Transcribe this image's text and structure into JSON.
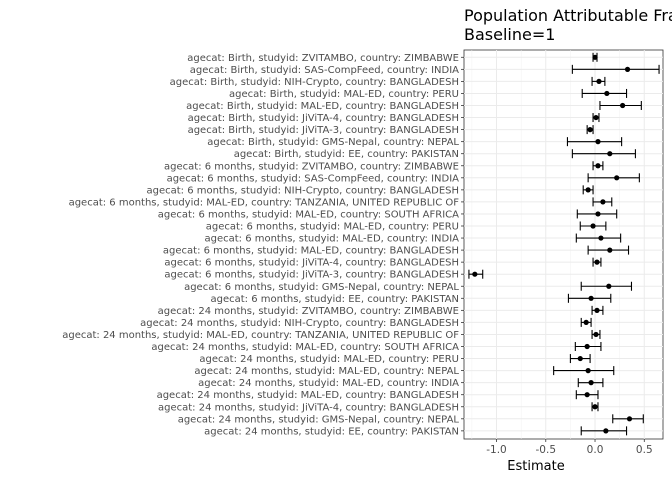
{
  "chart_data": {
    "type": "scatter",
    "title_lines": [
      "Population Attributable Fra",
      "Baseline=1"
    ],
    "xlabel": "Estimate",
    "ylabel": "",
    "xlim": [
      -1.33,
      0.69
    ],
    "xticks": [
      -1.0,
      -0.5,
      0.0,
      0.5
    ],
    "xtick_labels": [
      "-1.0",
      "-0.5",
      "0.0",
      "0.5"
    ],
    "grid": true,
    "point_color": "#000000",
    "points": [
      {
        "label": "agecat: Birth, studyid: ZVITAMBO, country: ZIMBABWE",
        "estimate": 0.0,
        "lower": -0.02,
        "upper": 0.02
      },
      {
        "label": "agecat: Birth, studyid: SAS-CompFeed, country: INDIA",
        "estimate": 0.33,
        "lower": -0.23,
        "upper": 0.65
      },
      {
        "label": "agecat: Birth, studyid: NIH-Crypto, country: BANGLADESH",
        "estimate": 0.04,
        "lower": -0.03,
        "upper": 0.1
      },
      {
        "label": "agecat: Birth, studyid: MAL-ED, country: PERU",
        "estimate": 0.12,
        "lower": -0.13,
        "upper": 0.32
      },
      {
        "label": "agecat: Birth, studyid: MAL-ED, country: BANGLADESH",
        "estimate": 0.28,
        "lower": 0.05,
        "upper": 0.47
      },
      {
        "label": "agecat: Birth, studyid: JiViTA-4, country: BANGLADESH",
        "estimate": 0.01,
        "lower": -0.02,
        "upper": 0.04
      },
      {
        "label": "agecat: Birth, studyid: JiViTA-3, country: BANGLADESH",
        "estimate": -0.05,
        "lower": -0.08,
        "upper": -0.02
      },
      {
        "label": "agecat: Birth, studyid: GMS-Nepal, country: NEPAL",
        "estimate": 0.03,
        "lower": -0.28,
        "upper": 0.27
      },
      {
        "label": "agecat: Birth, studyid: EE, country: PAKISTAN",
        "estimate": 0.15,
        "lower": -0.23,
        "upper": 0.41
      },
      {
        "label": "agecat: 6 months, studyid: ZVITAMBO, country: ZIMBABWE",
        "estimate": 0.03,
        "lower": -0.02,
        "upper": 0.08
      },
      {
        "label": "agecat: 6 months, studyid: SAS-CompFeed, country: INDIA",
        "estimate": 0.22,
        "lower": -0.07,
        "upper": 0.45
      },
      {
        "label": "agecat: 6 months, studyid: NIH-Crypto, country: BANGLADESH",
        "estimate": -0.07,
        "lower": -0.12,
        "upper": -0.02
      },
      {
        "label": "agecat: 6 months, studyid: MAL-ED, country: TANZANIA, UNITED REPUBLIC OF",
        "estimate": 0.08,
        "lower": -0.02,
        "upper": 0.17
      },
      {
        "label": "agecat: 6 months, studyid: MAL-ED, country: SOUTH AFRICA",
        "estimate": 0.03,
        "lower": -0.18,
        "upper": 0.22
      },
      {
        "label": "agecat: 6 months, studyid: MAL-ED, country: PERU",
        "estimate": -0.02,
        "lower": -0.15,
        "upper": 0.11
      },
      {
        "label": "agecat: 6 months, studyid: MAL-ED, country: INDIA",
        "estimate": 0.06,
        "lower": -0.19,
        "upper": 0.26
      },
      {
        "label": "agecat: 6 months, studyid: MAL-ED, country: BANGLADESH",
        "estimate": 0.15,
        "lower": -0.07,
        "upper": 0.34
      },
      {
        "label": "agecat: 6 months, studyid: JiViTA-4, country: BANGLADESH",
        "estimate": 0.02,
        "lower": -0.02,
        "upper": 0.06
      },
      {
        "label": "agecat: 6 months, studyid: JiViTA-3, country: BANGLADESH",
        "estimate": -1.22,
        "lower": -1.28,
        "upper": -1.14
      },
      {
        "label": "agecat: 6 months, studyid: GMS-Nepal, country: NEPAL",
        "estimate": 0.14,
        "lower": -0.14,
        "upper": 0.37
      },
      {
        "label": "agecat: 6 months, studyid: EE, country: PAKISTAN",
        "estimate": -0.04,
        "lower": -0.27,
        "upper": 0.16
      },
      {
        "label": "agecat: 24 months, studyid: ZVITAMBO, country: ZIMBABWE",
        "estimate": 0.02,
        "lower": -0.03,
        "upper": 0.08
      },
      {
        "label": "agecat: 24 months, studyid: NIH-Crypto, country: BANGLADESH",
        "estimate": -0.09,
        "lower": -0.14,
        "upper": -0.04
      },
      {
        "label": "agecat: 24 months, studyid: MAL-ED, country: TANZANIA, UNITED REPUBLIC OF",
        "estimate": 0.01,
        "lower": -0.03,
        "upper": 0.05
      },
      {
        "label": "agecat: 24 months, studyid: MAL-ED, country: SOUTH AFRICA",
        "estimate": -0.08,
        "lower": -0.2,
        "upper": 0.06
      },
      {
        "label": "agecat: 24 months, studyid: MAL-ED, country: PERU",
        "estimate": -0.15,
        "lower": -0.25,
        "upper": -0.05
      },
      {
        "label": "agecat: 24 months, studyid: MAL-ED, country: NEPAL",
        "estimate": -0.07,
        "lower": -0.42,
        "upper": 0.19
      },
      {
        "label": "agecat: 24 months, studyid: MAL-ED, country: INDIA",
        "estimate": -0.04,
        "lower": -0.17,
        "upper": 0.08
      },
      {
        "label": "agecat: 24 months, studyid: MAL-ED, country: BANGLADESH",
        "estimate": -0.08,
        "lower": -0.19,
        "upper": 0.03
      },
      {
        "label": "agecat: 24 months, studyid: JiViTA-4, country: BANGLADESH",
        "estimate": 0.0,
        "lower": -0.03,
        "upper": 0.03
      },
      {
        "label": "agecat: 24 months, studyid: GMS-Nepal, country: NEPAL",
        "estimate": 0.35,
        "lower": 0.18,
        "upper": 0.49
      },
      {
        "label": "agecat: 24 months, studyid: EE, country: PAKISTAN",
        "estimate": 0.11,
        "lower": -0.14,
        "upper": 0.32
      }
    ]
  }
}
